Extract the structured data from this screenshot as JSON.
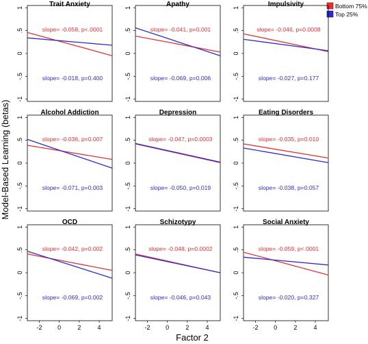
{
  "figure": {
    "ylabel": "Model-Based Learning (betas)",
    "xlabel": "Factor 2",
    "legend": {
      "placement": "top-right",
      "items": [
        {
          "label": "Bottom 75%",
          "color": "#e8312f"
        },
        {
          "label": "Top 25%",
          "color": "#2b2bd6"
        }
      ]
    }
  },
  "chart_data": {
    "type": "line",
    "layout": "3x3 small multiples",
    "xlim": [
      -3.2,
      5.3
    ],
    "ylim": [
      -1.05,
      1.05
    ],
    "xticks": [
      -2,
      0,
      2,
      4
    ],
    "yticks": [
      -1,
      -0.5,
      0,
      0.5,
      1
    ],
    "ytick_labels": [
      "-1",
      "-.5",
      "0",
      ".5",
      "1"
    ],
    "series_colors": {
      "Bottom 75%": "#e8312f",
      "Top 25%": "#2b2bd6"
    },
    "panels": [
      {
        "title": "Trait Anxiety",
        "series": [
          {
            "name": "Bottom 75%",
            "x": [
              -3.2,
              5.3
            ],
            "y": [
              0.46,
              -0.05
            ],
            "label": "slope= -0.058, p<.0001"
          },
          {
            "name": "Top 25%",
            "x": [
              -3.2,
              5.3
            ],
            "y": [
              0.34,
              0.18
            ],
            "label": "slope= -0.018, p=0.400"
          }
        ]
      },
      {
        "title": "Apathy",
        "series": [
          {
            "name": "Bottom 75%",
            "x": [
              -3.2,
              5.3
            ],
            "y": [
              0.38,
              0.03
            ],
            "label": "slope= -0.041, p=0.001"
          },
          {
            "name": "Top 25%",
            "x": [
              -3.2,
              5.3
            ],
            "y": [
              0.56,
              -0.05
            ],
            "label": "slope= -0.069, p=0.006"
          }
        ]
      },
      {
        "title": "Impulsivity",
        "series": [
          {
            "name": "Bottom 75%",
            "x": [
              -3.2,
              5.3
            ],
            "y": [
              0.43,
              0.04
            ],
            "label": "slope= -0.046, p=0.0008"
          },
          {
            "name": "Top 25%",
            "x": [
              -3.2,
              5.3
            ],
            "y": [
              0.31,
              0.06
            ],
            "label": "slope= -0.027, p=0.177"
          }
        ]
      },
      {
        "title": "Alcohol Addiction",
        "series": [
          {
            "name": "Bottom 75%",
            "x": [
              -3.2,
              5.3
            ],
            "y": [
              0.39,
              0.08
            ],
            "label": "slope= -0.036, p=0.007"
          },
          {
            "name": "Top 25%",
            "x": [
              -3.2,
              5.3
            ],
            "y": [
              0.52,
              -0.11
            ],
            "label": "slope= -0.071, p=0.003"
          }
        ]
      },
      {
        "title": "Depression",
        "series": [
          {
            "name": "Bottom 75%",
            "x": [
              -3.2,
              5.3
            ],
            "y": [
              0.42,
              0.01
            ],
            "label": "slope= -0.047, p=0.0003"
          },
          {
            "name": "Top 25%",
            "x": [
              -3.2,
              5.3
            ],
            "y": [
              0.43,
              0.02
            ],
            "label": "slope= -0.050, p=0.019"
          }
        ]
      },
      {
        "title": "Eating Disorders",
        "series": [
          {
            "name": "Bottom 75%",
            "x": [
              -3.2,
              5.3
            ],
            "y": [
              0.42,
              0.11
            ],
            "label": "slope= -0.035, p=0.010"
          },
          {
            "name": "Top 25%",
            "x": [
              -3.2,
              5.3
            ],
            "y": [
              0.33,
              0.01
            ],
            "label": "slope= -0.038, p=0.057"
          }
        ]
      },
      {
        "title": "OCD",
        "series": [
          {
            "name": "Bottom 75%",
            "x": [
              -3.2,
              5.3
            ],
            "y": [
              0.41,
              0.05
            ],
            "label": "slope= -0.042, p=0.002"
          },
          {
            "name": "Top 25%",
            "x": [
              -3.2,
              5.3
            ],
            "y": [
              0.47,
              -0.12
            ],
            "label": "slope= -0.069, p=0.002"
          }
        ]
      },
      {
        "title": "Schizotypy",
        "series": [
          {
            "name": "Bottom 75%",
            "x": [
              -3.2,
              5.3
            ],
            "y": [
              0.41,
              0.0
            ],
            "label": "slope= -0.048, p=0.0002"
          },
          {
            "name": "Top 25%",
            "x": [
              -3.2,
              5.3
            ],
            "y": [
              0.39,
              0.0
            ],
            "label": "slope= -0.046, p=0.043"
          }
        ]
      },
      {
        "title": "Social Anxiety",
        "series": [
          {
            "name": "Bottom 75%",
            "x": [
              -3.2,
              5.3
            ],
            "y": [
              0.45,
              -0.05
            ],
            "label": "slope= -0.059, p<.0001"
          },
          {
            "name": "Top 25%",
            "x": [
              -3.2,
              5.3
            ],
            "y": [
              0.34,
              0.17
            ],
            "label": "slope= -0.020, p=0.327"
          }
        ]
      }
    ]
  }
}
